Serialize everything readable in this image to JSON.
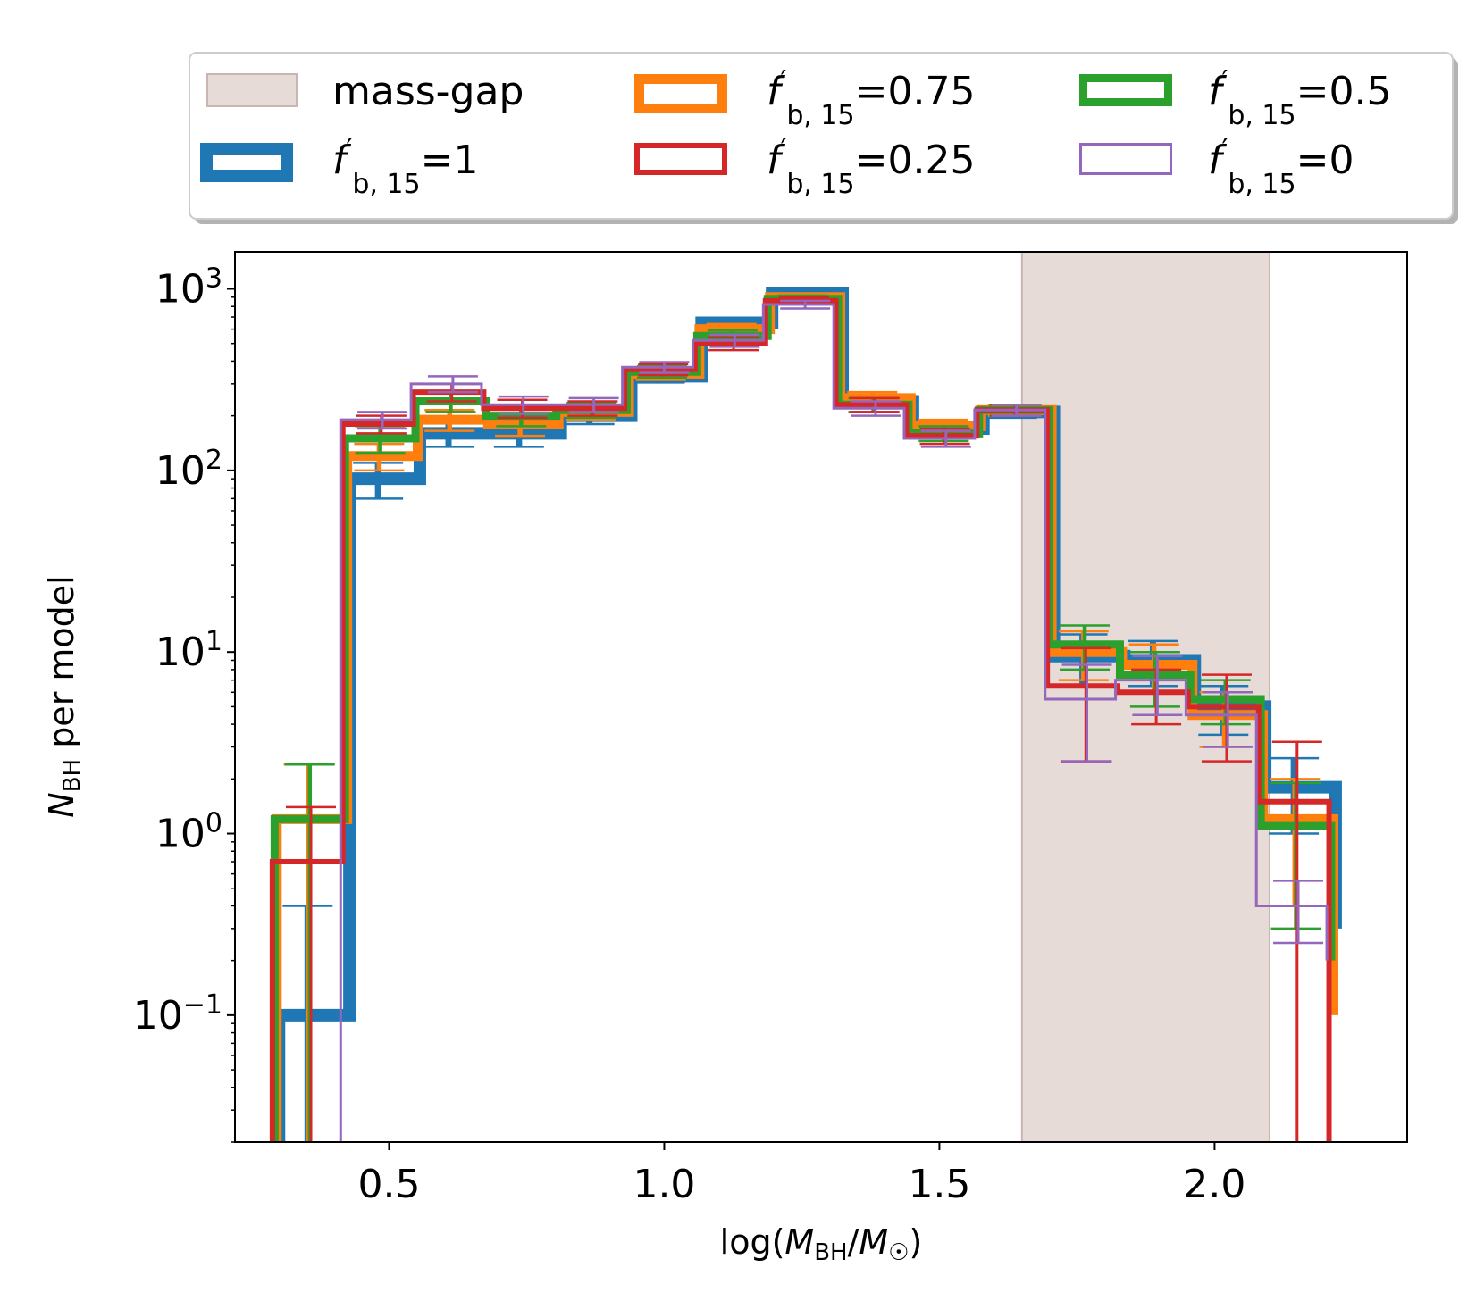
{
  "chart_data": {
    "type": "step-histogram",
    "xlabel": {
      "pre": "log(",
      "main1": "M",
      "sub1": "BH",
      "slash": "/",
      "main2": "M",
      "sub2": "☉",
      "post": ")"
    },
    "ylabel": {
      "main": "N",
      "sub": "BH",
      "rest": " per model"
    },
    "xlim": [
      0.22,
      2.35
    ],
    "ylim": [
      0.02,
      1600
    ],
    "yscale": "log",
    "x_ticks": [
      {
        "value": 0.5,
        "label": "0.5"
      },
      {
        "value": 1.0,
        "label": "1.0"
      },
      {
        "value": 1.5,
        "label": "1.5"
      },
      {
        "value": 2.0,
        "label": "2.0"
      }
    ],
    "y_ticks": [
      {
        "value": 0.1,
        "base": "10",
        "exp": "−1"
      },
      {
        "value": 1,
        "base": "10",
        "exp": "0"
      },
      {
        "value": 10,
        "base": "10",
        "exp": "1"
      },
      {
        "value": 100,
        "base": "10",
        "exp": "2"
      },
      {
        "value": 1000,
        "base": "10",
        "exp": "3"
      }
    ],
    "bin_edges": [
      0.3,
      0.428,
      0.556,
      0.684,
      0.812,
      0.94,
      1.068,
      1.196,
      1.324,
      1.452,
      1.58,
      1.708,
      1.836,
      1.964,
      2.092,
      2.22
    ],
    "mass_gap": {
      "x0": 1.65,
      "x1": 2.1,
      "color": "#e7dbd8",
      "label": "mass-gap"
    },
    "legend": {
      "placement": "above plot",
      "prefix": "f",
      "sub": "b, 15",
      "entries": [
        {
          "kind": "gap",
          "label": "mass-gap"
        },
        {
          "kind": "series",
          "index": 0,
          "value": "=1"
        },
        {
          "kind": "series",
          "index": 1,
          "value": "=0.75"
        },
        {
          "kind": "series",
          "index": 2,
          "value": "=0.5"
        },
        {
          "kind": "series",
          "index": 3,
          "value": "=0.25"
        },
        {
          "kind": "series",
          "index": 4,
          "value": "=0"
        }
      ]
    },
    "series": [
      {
        "fb15": "1",
        "color": "#1f77b4",
        "lw": 14,
        "offset": 0.0,
        "values": [
          0.1,
          90,
          160,
          160,
          200,
          330,
          650,
          950,
          240,
          170,
          210,
          9.5,
          9,
          5,
          1.8,
          0.3
        ],
        "err": [
          0.3,
          20,
          25,
          25,
          20,
          25,
          40,
          40,
          20,
          15,
          15,
          3,
          2.5,
          1.5,
          0.8,
          0.3
        ]
      },
      {
        "fb15": "0.75",
        "color": "#ff7f0e",
        "lw": 11,
        "offset": -0.004,
        "values": [
          1.2,
          120,
          190,
          180,
          210,
          340,
          600,
          900,
          250,
          175,
          215,
          10,
          8.5,
          4.5,
          1.2,
          0.1
        ],
        "err": [
          1.2,
          20,
          25,
          25,
          20,
          25,
          40,
          40,
          20,
          15,
          15,
          3,
          2.5,
          1.5,
          0.8,
          0.15
        ]
      },
      {
        "fb15": "0.5",
        "color": "#2ca02c",
        "lw": 9,
        "offset": -0.008,
        "values": [
          1.2,
          150,
          240,
          200,
          215,
          350,
          550,
          880,
          230,
          160,
          215,
          11,
          7.5,
          5.5,
          1.1,
          0.2
        ],
        "err": [
          1.2,
          25,
          30,
          25,
          20,
          25,
          40,
          40,
          20,
          15,
          15,
          3,
          2.5,
          1.5,
          0.8,
          0.4
        ]
      },
      {
        "fb15": "0.25",
        "color": "#d62728",
        "lw": 6,
        "offset": -0.012,
        "values": [
          0.7,
          180,
          270,
          220,
          220,
          360,
          500,
          860,
          230,
          155,
          215,
          6.5,
          6,
          5,
          1.5,
          0.0
        ],
        "err": [
          0.7,
          20,
          30,
          25,
          20,
          25,
          40,
          40,
          20,
          15,
          15,
          4,
          2,
          2.5,
          1.7,
          0.0
        ]
      },
      {
        "fb15": "0",
        "color": "#9467bd",
        "lw": 3,
        "offset": -0.016,
        "values": [
          0.0,
          190,
          300,
          230,
          230,
          370,
          520,
          820,
          220,
          150,
          215,
          5.5,
          7,
          4.5,
          0.4,
          0.2
        ],
        "err": [
          0.0,
          20,
          30,
          25,
          20,
          25,
          40,
          40,
          20,
          15,
          15,
          3,
          2.5,
          1.5,
          0.15,
          0.2
        ]
      }
    ]
  }
}
